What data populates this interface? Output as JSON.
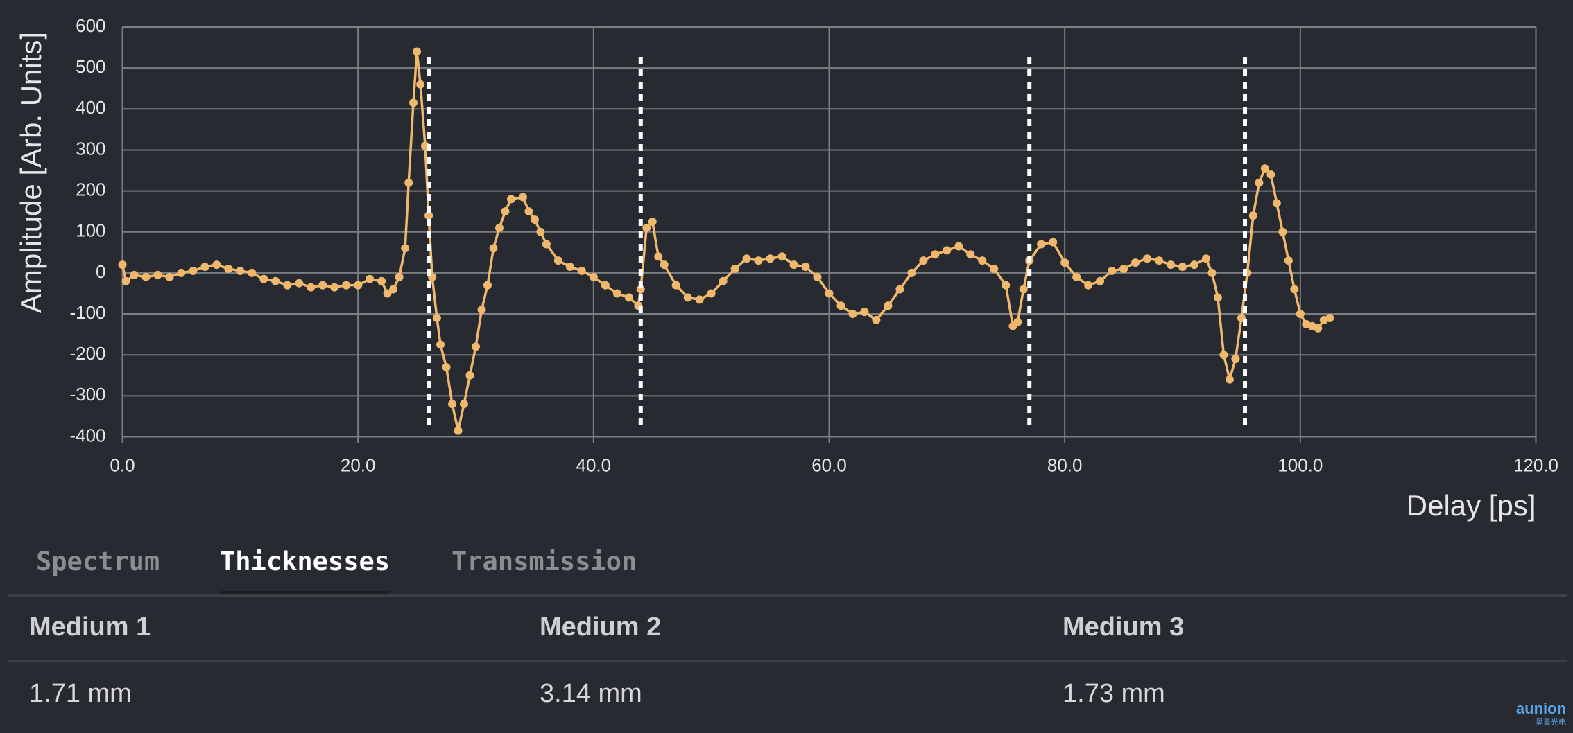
{
  "chart_data": {
    "type": "line",
    "y_label": "Amplitude [Arb. Units]",
    "x_label": "Delay [ps]",
    "color": "#f0b86c",
    "grid": true,
    "xlim": [
      0,
      120
    ],
    "ylim": [
      -400,
      600
    ],
    "xticks": [
      {
        "value": 0,
        "label": "0.0"
      },
      {
        "value": 20,
        "label": "20.0"
      },
      {
        "value": 40,
        "label": "40.0"
      },
      {
        "value": 60,
        "label": "60.0"
      },
      {
        "value": 80,
        "label": "80.0"
      },
      {
        "value": 100,
        "label": "100.0"
      },
      {
        "value": 120,
        "label": "120.0"
      }
    ],
    "yticks": [
      -400,
      -300,
      -200,
      -100,
      0,
      100,
      200,
      300,
      400,
      500,
      600
    ],
    "markers": [
      26,
      44,
      77,
      95.3
    ],
    "x": [
      0,
      0.3,
      1,
      2,
      3,
      4,
      5,
      6,
      7,
      8,
      9,
      10,
      11,
      12,
      13,
      14,
      15,
      16,
      17,
      18,
      19,
      20,
      21,
      22,
      22.5,
      23,
      23.5,
      24,
      24.3,
      24.7,
      25,
      25.3,
      25.7,
      26,
      26.3,
      26.7,
      27,
      27.5,
      28,
      28.5,
      29,
      29.5,
      30,
      30.5,
      31,
      31.5,
      32,
      32.5,
      33,
      34,
      34.5,
      35,
      35.5,
      36,
      37,
      38,
      39,
      40,
      41,
      42,
      43,
      43.8,
      44,
      44.5,
      45,
      45.5,
      46,
      47,
      48,
      49,
      50,
      51,
      52,
      53,
      54,
      55,
      56,
      57,
      58,
      59,
      60,
      61,
      62,
      63,
      64,
      65,
      66,
      67,
      68,
      69,
      70,
      71,
      72,
      73,
      74,
      75,
      75.6,
      76,
      76.5,
      77,
      78,
      79,
      80,
      81,
      82,
      83,
      84,
      85,
      86,
      87,
      88,
      89,
      90,
      91,
      92,
      92.5,
      93,
      93.5,
      94,
      94.5,
      95,
      95.5,
      96,
      96.5,
      97,
      97.5,
      98,
      98.5,
      99,
      99.5,
      100,
      100.5,
      101,
      101.5,
      102,
      102.5
    ],
    "values": [
      20,
      -20,
      -5,
      -10,
      -5,
      -10,
      0,
      5,
      15,
      20,
      10,
      5,
      0,
      -15,
      -20,
      -30,
      -25,
      -35,
      -30,
      -35,
      -30,
      -30,
      -15,
      -20,
      -50,
      -40,
      -10,
      60,
      220,
      415,
      540,
      460,
      310,
      140,
      -10,
      -110,
      -175,
      -230,
      -320,
      -385,
      -320,
      -250,
      -180,
      -90,
      -30,
      60,
      110,
      150,
      180,
      185,
      150,
      130,
      100,
      70,
      30,
      15,
      5,
      -10,
      -30,
      -50,
      -60,
      -80,
      -40,
      110,
      125,
      40,
      20,
      -30,
      -60,
      -65,
      -50,
      -20,
      10,
      35,
      30,
      35,
      40,
      20,
      15,
      -10,
      -50,
      -80,
      -100,
      -95,
      -115,
      -80,
      -40,
      0,
      30,
      45,
      55,
      65,
      45,
      30,
      10,
      -30,
      -130,
      -120,
      -40,
      30,
      70,
      75,
      25,
      -10,
      -30,
      -20,
      5,
      10,
      25,
      35,
      30,
      20,
      15,
      20,
      35,
      0,
      -60,
      -200,
      -260,
      -210,
      -110,
      0,
      140,
      220,
      255,
      240,
      170,
      100,
      30,
      -40,
      -100,
      -125,
      -130,
      -135,
      -115,
      -110
    ]
  },
  "tabs": {
    "items": [
      "Spectrum",
      "Thicknesses",
      "Transmission"
    ],
    "active": 1
  },
  "table": {
    "headers": [
      "Medium 1",
      "Medium 2",
      "Medium 3"
    ],
    "rows": [
      [
        "1.71 mm",
        "3.14 mm",
        "1.73 mm"
      ]
    ]
  },
  "logo": {
    "brand": "aunion",
    "sub": "昊量光电"
  }
}
